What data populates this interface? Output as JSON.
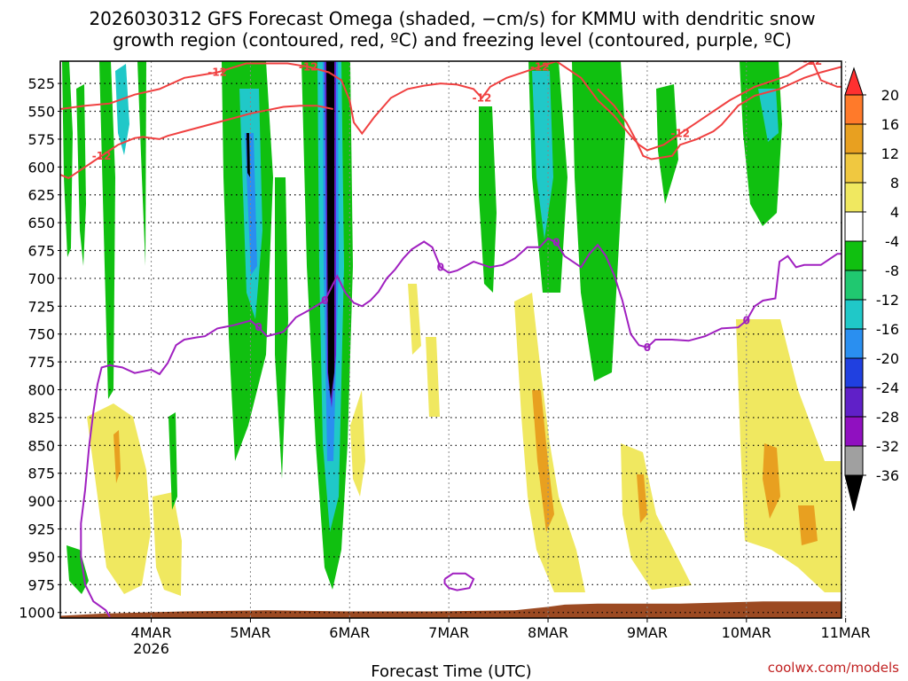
{
  "chart_data": {
    "type": "time-height",
    "title_line1": "2026030312 GFS Forecast Omega (shaded, −cm/s) for KMMU with dendritic snow",
    "title_line2": "growth region (contoured, red, ºC) and freezing level (contoured, purple, ºC)",
    "xlabel": "Forecast Time (UTC)",
    "credit": "coolwx.com/models",
    "x_range_hours": [
      -10,
      179
    ],
    "x_ticks": [
      {
        "label": "4MAR",
        "sub": "2026",
        "hour": 12
      },
      {
        "label": "5MAR",
        "sub": "",
        "hour": 36
      },
      {
        "label": "6MAR",
        "sub": "",
        "hour": 60
      },
      {
        "label": "7MAR",
        "sub": "",
        "hour": 84
      },
      {
        "label": "8MAR",
        "sub": "",
        "hour": 108
      },
      {
        "label": "9MAR",
        "sub": "",
        "hour": 132
      },
      {
        "label": "10MAR",
        "sub": "",
        "hour": 156
      },
      {
        "label": "11MAR",
        "sub": "",
        "hour": 180
      }
    ],
    "y_ticks": [
      525,
      550,
      575,
      600,
      625,
      650,
      675,
      700,
      725,
      750,
      775,
      800,
      825,
      850,
      875,
      900,
      925,
      950,
      975,
      1000
    ],
    "y_range_hpa": [
      505,
      1005
    ],
    "colorbar": {
      "tick_labels": [
        "20",
        "16",
        "12",
        "8",
        "4",
        "-4",
        "-8",
        "-12",
        "-16",
        "-20",
        "-24",
        "-28",
        "-32",
        "-36"
      ],
      "colors": [
        "#ff3030",
        "#ff7a2a",
        "#e8a020",
        "#f0c840",
        "#f0e860",
        "#ffffff",
        "#10c010",
        "#20c870",
        "#20c8c8",
        "#2a8ff0",
        "#2040e0",
        "#6020c8",
        "#9010c0",
        "#a0a0a0",
        "#000000"
      ]
    },
    "snow_growth_top_contour": {
      "level": -12,
      "color": "#f04040",
      "labels_at_hours": [
        27,
        49,
        93,
        105,
        142,
        170
      ],
      "points": [
        [
          -10,
          548
        ],
        [
          -4,
          545
        ],
        [
          2,
          543
        ],
        [
          8,
          535
        ],
        [
          14,
          530
        ],
        [
          20,
          520
        ],
        [
          28,
          515
        ],
        [
          35,
          507
        ],
        [
          38,
          507
        ],
        [
          45,
          507
        ],
        [
          50,
          510
        ],
        [
          55,
          515
        ],
        [
          58,
          522
        ],
        [
          60,
          540
        ],
        [
          61,
          560
        ],
        [
          63,
          570
        ],
        [
          66,
          555
        ],
        [
          70,
          538
        ],
        [
          74,
          530
        ],
        [
          78,
          527
        ],
        [
          82,
          525
        ],
        [
          86,
          526
        ],
        [
          90,
          530
        ],
        [
          92,
          538
        ],
        [
          94,
          528
        ],
        [
          98,
          520
        ],
        [
          102,
          515
        ],
        [
          106,
          510
        ],
        [
          110,
          505
        ],
        [
          116,
          520
        ],
        [
          120,
          540
        ],
        [
          124,
          554
        ],
        [
          128,
          572
        ],
        [
          130,
          580
        ],
        [
          132,
          585
        ],
        [
          136,
          580
        ],
        [
          140,
          570
        ],
        [
          144,
          560
        ],
        [
          148,
          550
        ],
        [
          152,
          540
        ],
        [
          158,
          528
        ],
        [
          166,
          518
        ],
        [
          172,
          505
        ],
        [
          174,
          522
        ],
        [
          178,
          528
        ],
        [
          179,
          528
        ]
      ]
    },
    "snow_growth_bottom_contour": {
      "level": -12,
      "color": "#f04040",
      "labels_at_hours": [
        1
      ],
      "points": [
        [
          -10,
          607
        ],
        [
          -8,
          610
        ],
        [
          -6,
          605
        ],
        [
          -4,
          600
        ],
        [
          -2,
          595
        ],
        [
          0,
          590
        ],
        [
          2,
          585
        ],
        [
          4,
          580
        ],
        [
          6,
          577
        ],
        [
          8,
          574
        ],
        [
          10,
          573
        ],
        [
          12,
          574
        ],
        [
          14,
          575
        ],
        [
          16,
          572
        ],
        [
          20,
          568
        ],
        [
          24,
          564
        ],
        [
          28,
          560
        ],
        [
          32,
          556
        ],
        [
          36,
          552
        ],
        [
          40,
          549
        ],
        [
          44,
          546
        ],
        [
          48,
          545
        ],
        [
          52,
          545
        ],
        [
          56,
          548
        ]
      ]
    },
    "lower_right_contour": {
      "level": -12,
      "color": "#f04040",
      "labels_at_hours": [],
      "points": [
        [
          120,
          530
        ],
        [
          124,
          545
        ],
        [
          127,
          560
        ],
        [
          129,
          574
        ],
        [
          131,
          590
        ],
        [
          133,
          593
        ],
        [
          138,
          590
        ],
        [
          140,
          580
        ],
        [
          144,
          575
        ],
        [
          148,
          568
        ],
        [
          150,
          562
        ],
        [
          154,
          545
        ],
        [
          158,
          536
        ],
        [
          164,
          530
        ],
        [
          170,
          520
        ],
        [
          174,
          515
        ],
        [
          179,
          510
        ]
      ]
    },
    "freezing_level_contour": {
      "level": 0,
      "color": "#a020c0",
      "labels_at_hours": [
        39,
        55,
        83,
        111,
        133,
        157
      ],
      "points": [
        [
          2,
          1004
        ],
        [
          1,
          998
        ],
        [
          -2,
          990
        ],
        [
          -4,
          975
        ],
        [
          -5,
          950
        ],
        [
          -5,
          920
        ],
        [
          -4,
          890
        ],
        [
          -3,
          850
        ],
        [
          -2,
          820
        ],
        [
          -1,
          795
        ],
        [
          0,
          780
        ],
        [
          2,
          778
        ],
        [
          5,
          780
        ],
        [
          8,
          785
        ],
        [
          12,
          782
        ],
        [
          14,
          786
        ],
        [
          16,
          776
        ],
        [
          18,
          760
        ],
        [
          20,
          755
        ],
        [
          23,
          753
        ],
        [
          25,
          752
        ],
        [
          28,
          745
        ],
        [
          32,
          742
        ],
        [
          36,
          738
        ],
        [
          38,
          744
        ],
        [
          40,
          752
        ],
        [
          44,
          748
        ],
        [
          47,
          735
        ],
        [
          50,
          729
        ],
        [
          54,
          720
        ],
        [
          56,
          705
        ],
        [
          57,
          698
        ],
        [
          59,
          713
        ],
        [
          61,
          722
        ],
        [
          63,
          725
        ],
        [
          65,
          720
        ],
        [
          67,
          712
        ],
        [
          69,
          700
        ],
        [
          71,
          692
        ],
        [
          73,
          682
        ],
        [
          75,
          674
        ],
        [
          78,
          667
        ],
        [
          80,
          672
        ],
        [
          82,
          690
        ],
        [
          84,
          695
        ],
        [
          86,
          693
        ],
        [
          90,
          685
        ],
        [
          94,
          690
        ],
        [
          97,
          688
        ],
        [
          100,
          682
        ],
        [
          103,
          672
        ],
        [
          106,
          672
        ],
        [
          108,
          664
        ],
        [
          110,
          668
        ],
        [
          112,
          680
        ],
        [
          114,
          685
        ],
        [
          116,
          690
        ],
        [
          118,
          678
        ],
        [
          120,
          670
        ],
        [
          122,
          680
        ],
        [
          124,
          697
        ],
        [
          126,
          720
        ],
        [
          128,
          750
        ],
        [
          130,
          760
        ],
        [
          132,
          762
        ],
        [
          134,
          755
        ],
        [
          138,
          755
        ],
        [
          142,
          756
        ],
        [
          146,
          752
        ],
        [
          150,
          745
        ],
        [
          154,
          744
        ],
        [
          156,
          738
        ],
        [
          158,
          725
        ],
        [
          160,
          720
        ],
        [
          163,
          718
        ],
        [
          164,
          685
        ],
        [
          166,
          680
        ],
        [
          168,
          690
        ],
        [
          170,
          688
        ],
        [
          174,
          688
        ],
        [
          178,
          678
        ],
        [
          179,
          678
        ]
      ]
    },
    "small_freezing_loop": {
      "level": 0,
      "color": "#a020c0",
      "points": [
        [
          83,
          970
        ],
        [
          85,
          965
        ],
        [
          88,
          965
        ],
        [
          90,
          970
        ],
        [
          89,
          978
        ],
        [
          86,
          980
        ],
        [
          84,
          978
        ],
        [
          83,
          974
        ],
        [
          83,
          970
        ]
      ]
    },
    "terrain_color": "#9c4a22"
  }
}
